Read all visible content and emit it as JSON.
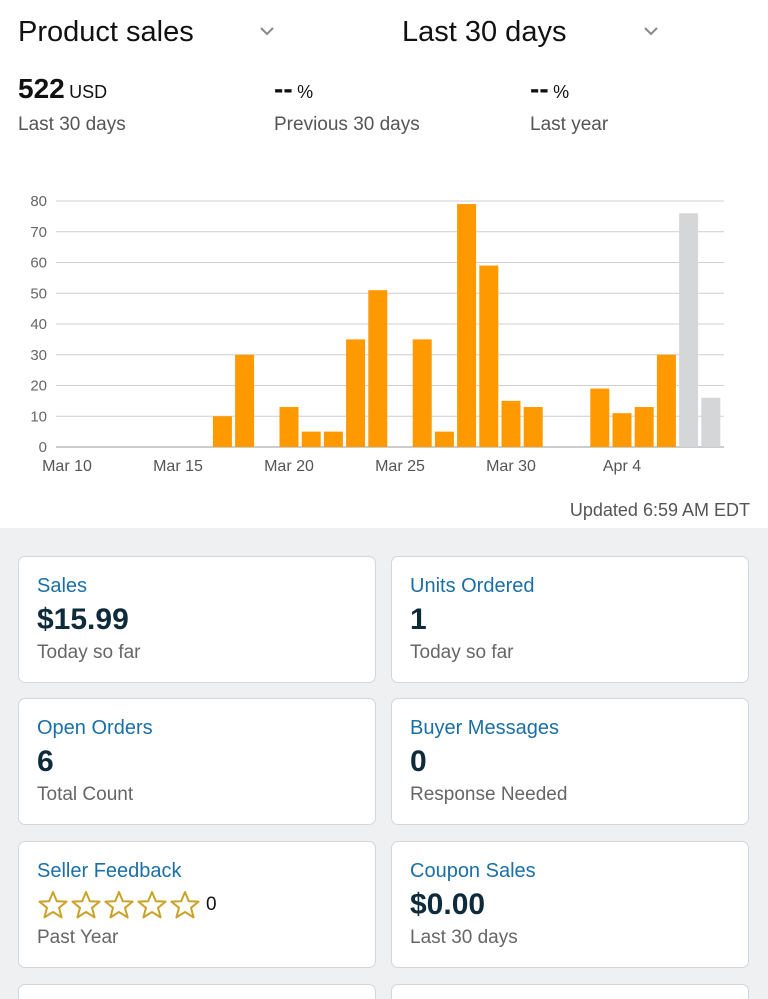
{
  "header": {
    "metric_dropdown": "Product sales",
    "range_dropdown": "Last 30 days"
  },
  "stats": [
    {
      "value": "522",
      "unit": "USD",
      "label": "Last 30 days"
    },
    {
      "value": "--",
      "unit": "%",
      "label": "Previous 30 days"
    },
    {
      "value": "--",
      "unit": "%",
      "label": "Last year"
    }
  ],
  "chart_data": {
    "type": "bar",
    "title": "",
    "xlabel": "",
    "ylabel": "",
    "ylim": [
      0,
      80
    ],
    "yticks": [
      0,
      10,
      20,
      30,
      40,
      50,
      60,
      70,
      80
    ],
    "x_tick_labels": [
      "Mar 10",
      "Mar 15",
      "Mar 20",
      "Mar 25",
      "Mar 30",
      "Apr 4"
    ],
    "categories": [
      "Mar 10",
      "Mar 11",
      "Mar 12",
      "Mar 13",
      "Mar 14",
      "Mar 15",
      "Mar 16",
      "Mar 17",
      "Mar 18",
      "Mar 19",
      "Mar 20",
      "Mar 21",
      "Mar 22",
      "Mar 23",
      "Mar 24",
      "Mar 25",
      "Mar 26",
      "Mar 27",
      "Mar 28",
      "Mar 29",
      "Mar 30",
      "Mar 31",
      "Apr 1",
      "Apr 2",
      "Apr 3",
      "Apr 4",
      "Apr 5",
      "Apr 6",
      "Apr 7",
      "Apr 8"
    ],
    "series": [
      {
        "values": [
          0,
          0,
          0,
          0,
          0,
          0,
          0,
          10,
          30,
          0,
          13,
          5,
          5,
          35,
          51,
          0,
          35,
          5,
          79,
          59,
          15,
          13,
          0,
          0,
          19,
          11,
          13,
          30,
          0,
          0
        ],
        "color": "#ff9900"
      },
      {
        "values": [
          0,
          0,
          0,
          0,
          0,
          0,
          0,
          0,
          0,
          0,
          0,
          0,
          0,
          0,
          0,
          0,
          0,
          0,
          0,
          0,
          0,
          0,
          0,
          0,
          0,
          0,
          0,
          0,
          76,
          16
        ],
        "color": "#d5d6d7"
      }
    ],
    "grid": true
  },
  "updated": "Updated 6:59 AM EDT",
  "cards": {
    "sales": {
      "title": "Sales",
      "value": "$15.99",
      "sub": "Today so far"
    },
    "units": {
      "title": "Units Ordered",
      "value": "1",
      "sub": "Today so far"
    },
    "orders": {
      "title": "Open Orders",
      "value": "6",
      "sub": "Total Count"
    },
    "messages": {
      "title": "Buyer Messages",
      "value": "0",
      "sub": "Response Needed"
    },
    "feedback": {
      "title": "Seller Feedback",
      "count": "0",
      "sub": "Past Year",
      "rating": 0
    },
    "coupons": {
      "title": "Coupon Sales",
      "value": "$0.00",
      "sub": "Last 30 days"
    }
  },
  "icons": {
    "dropdown": "chevron-down-icon",
    "star": "star-outline-icon"
  },
  "colors": {
    "bar_primary": "#ff9900",
    "bar_partial": "#d5d6d7",
    "star": "#c9a227",
    "link": "#1a6fa6",
    "panel_bg": "#eef0f2"
  }
}
